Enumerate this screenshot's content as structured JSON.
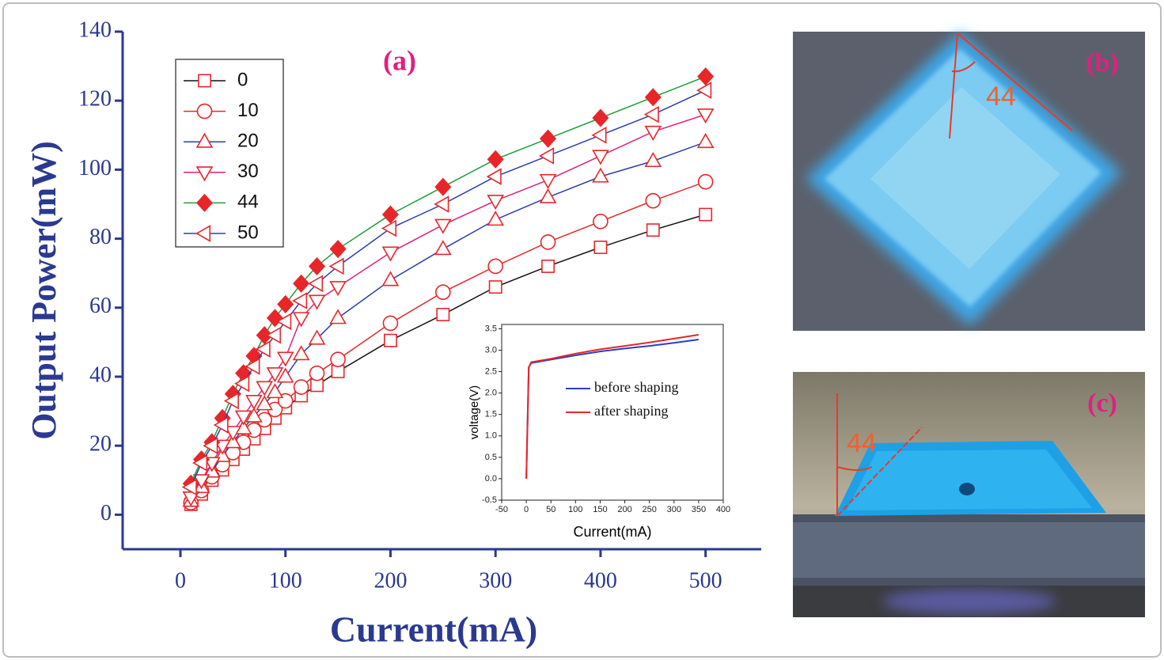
{
  "chart_data": [
    {
      "type": "line",
      "title": "(a)",
      "x_label": "Current(mA)",
      "y_label": "Output Power(mW)",
      "xlim": [
        -55,
        553
      ],
      "ylim": [
        -10,
        140
      ],
      "xticks": [
        0,
        100,
        200,
        300,
        400,
        500
      ],
      "yticks": [
        0,
        20,
        40,
        60,
        80,
        100,
        120,
        140
      ],
      "legend": "upper left",
      "x": [
        10,
        20,
        30,
        40,
        50,
        60,
        70,
        80,
        90,
        100,
        115,
        130,
        150,
        200,
        250,
        300,
        350,
        400,
        450,
        500
      ],
      "series": [
        {
          "name": "0",
          "color": "#111111",
          "marker": "square",
          "marker_color": "#e8262a",
          "values": [
            3,
            6,
            10,
            13,
            16,
            19,
            22,
            25,
            28,
            31,
            34.5,
            37.5,
            41.5,
            50.5,
            58,
            66,
            72,
            77.5,
            82.5,
            87
          ]
        },
        {
          "name": "10",
          "color": "#e8262a",
          "marker": "circle",
          "marker_color": "#e8262a",
          "values": [
            3.5,
            7,
            11,
            14.5,
            18,
            21,
            24.5,
            27.5,
            30.5,
            33,
            37,
            41,
            45,
            55.5,
            64.5,
            72,
            79,
            85,
            91,
            96.5
          ]
        },
        {
          "name": "20",
          "color": "#2b3fa8",
          "marker": "triangle-up",
          "marker_color": "#e8262a",
          "values": [
            4,
            8,
            12.5,
            17,
            21,
            25,
            28.5,
            32,
            35.5,
            40,
            46.5,
            51,
            57,
            68,
            77,
            85.5,
            92,
            98,
            102.5,
            108
          ]
        },
        {
          "name": "30",
          "color": "#e0207f",
          "marker": "triangle-down",
          "marker_color": "#e8262a",
          "values": [
            5,
            10,
            15,
            20,
            24,
            28.5,
            33,
            37,
            41,
            45.5,
            57,
            62,
            66,
            76,
            84,
            91,
            97,
            104,
            111,
            116
          ]
        },
        {
          "name": "44",
          "color": "#1f9e3a",
          "marker": "diamond",
          "marker_color": "#e8262a",
          "marker_filled": true,
          "values": [
            9,
            16,
            21,
            28,
            35,
            41,
            46,
            52,
            57,
            61,
            67,
            72,
            77,
            87,
            95,
            103,
            109,
            115,
            121,
            127
          ]
        },
        {
          "name": "50",
          "color": "#2b3fa8",
          "marker": "triangle-left",
          "marker_color": "#e8262a",
          "values": [
            8,
            15,
            20,
            26,
            33,
            38,
            43,
            48,
            52,
            56,
            62,
            67,
            72,
            83,
            90,
            98,
            104,
            110,
            116,
            123
          ]
        }
      ]
    },
    {
      "type": "line",
      "x_label": "Current(mA)",
      "y_label": "voltage(V)",
      "xlim": [
        -50,
        400
      ],
      "ylim": [
        -0.5,
        3.6
      ],
      "xticks": [
        -50,
        0,
        50,
        100,
        150,
        200,
        250,
        300,
        350,
        400
      ],
      "yticks": [
        -0.5,
        {
          "value": 0,
          "label": "0.0"
        },
        0.5,
        {
          "value": 1,
          "label": "1.0"
        },
        1.5,
        {
          "value": 2,
          "label": "2.0"
        },
        2.5,
        {
          "value": 3,
          "label": "3.0"
        },
        3.5
      ],
      "legend": "center right",
      "x": [
        0,
        5,
        10,
        50,
        100,
        150,
        200,
        250,
        300,
        350
      ],
      "series": [
        {
          "name": "before shaping",
          "color": "#2b3fc8",
          "values": [
            0,
            2.6,
            2.7,
            2.78,
            2.88,
            2.97,
            3.04,
            3.1,
            3.17,
            3.25
          ]
        },
        {
          "name": "after shaping",
          "color": "#e8262a",
          "values": [
            0,
            2.6,
            2.72,
            2.8,
            2.92,
            3.02,
            3.1,
            3.18,
            3.27,
            3.36
          ]
        }
      ]
    }
  ],
  "photos": [
    {
      "label": "(b)",
      "angle_label": "44"
    },
    {
      "label": "(c)",
      "angle_label": "44"
    }
  ]
}
